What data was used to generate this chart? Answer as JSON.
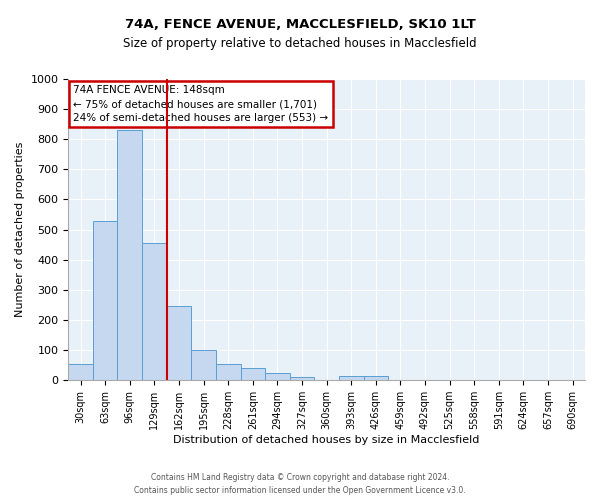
{
  "title1": "74A, FENCE AVENUE, MACCLESFIELD, SK10 1LT",
  "title2": "Size of property relative to detached houses in Macclesfield",
  "xlabel": "Distribution of detached houses by size in Macclesfield",
  "ylabel": "Number of detached properties",
  "footer1": "Contains HM Land Registry data © Crown copyright and database right 2024.",
  "footer2": "Contains public sector information licensed under the Open Government Licence v3.0.",
  "bin_labels": [
    "30sqm",
    "63sqm",
    "96sqm",
    "129sqm",
    "162sqm",
    "195sqm",
    "228sqm",
    "261sqm",
    "294sqm",
    "327sqm",
    "360sqm",
    "393sqm",
    "426sqm",
    "459sqm",
    "492sqm",
    "525sqm",
    "558sqm",
    "591sqm",
    "624sqm",
    "657sqm",
    "690sqm"
  ],
  "bar_values": [
    55,
    530,
    830,
    455,
    245,
    100,
    55,
    40,
    25,
    10,
    0,
    15,
    15,
    0,
    0,
    0,
    0,
    0,
    0,
    0,
    0
  ],
  "bar_color": "#c5d8f0",
  "bar_edge_color": "#5a9fd4",
  "bg_color": "#e8f0f8",
  "grid_color": "#ffffff",
  "vline_color": "#cc0000",
  "annotation_text": "74A FENCE AVENUE: 148sqm\n← 75% of detached houses are smaller (1,701)\n24% of semi-detached houses are larger (553) →",
  "annotation_box_color": "#cc0000",
  "ylim": [
    0,
    1000
  ],
  "yticks": [
    0,
    100,
    200,
    300,
    400,
    500,
    600,
    700,
    800,
    900,
    1000
  ]
}
